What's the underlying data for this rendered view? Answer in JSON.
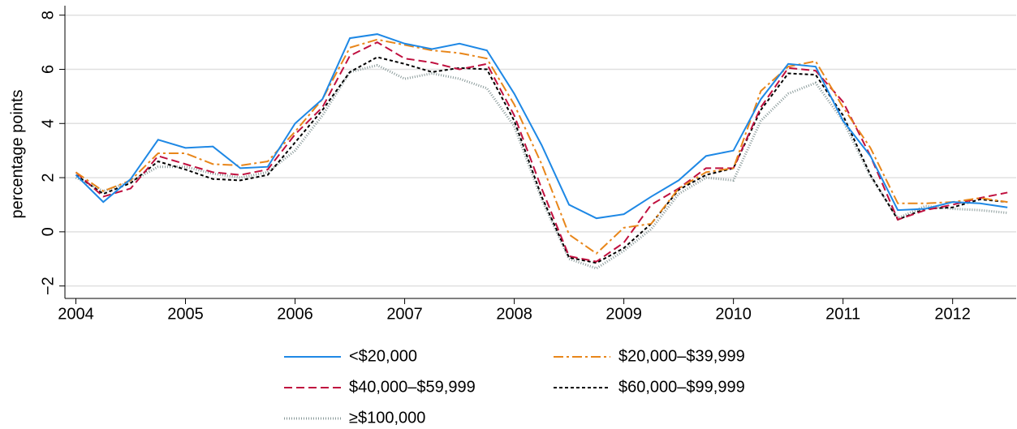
{
  "chart_data": {
    "type": "line",
    "y_label": "percentage points",
    "x": [
      2004,
      2004.25,
      2004.5,
      2004.75,
      2005,
      2005.25,
      2005.5,
      2005.75,
      2006,
      2006.25,
      2006.5,
      2006.75,
      2007,
      2007.25,
      2007.5,
      2007.75,
      2008,
      2008.25,
      2008.5,
      2008.75,
      2009,
      2009.25,
      2009.5,
      2009.75,
      2010,
      2010.25,
      2010.5,
      2010.75,
      2011,
      2011.25,
      2011.5,
      2011.75,
      2012,
      2012.25,
      2012.5
    ],
    "series": [
      {
        "name": "<$20,000",
        "color": "#1e88e5",
        "dash": "none",
        "values": [
          2.1,
          1.1,
          1.95,
          3.4,
          3.1,
          3.15,
          2.35,
          2.4,
          4.0,
          4.9,
          7.15,
          7.3,
          6.95,
          6.75,
          6.95,
          6.7,
          5.1,
          3.2,
          1.0,
          0.5,
          0.65,
          1.3,
          1.9,
          2.8,
          3.0,
          4.9,
          6.2,
          6.1,
          4.1,
          2.8,
          0.8,
          0.85,
          1.1,
          1.05,
          0.9
        ]
      },
      {
        "name": "$20,000–$39,999",
        "color": "#e8861a",
        "dash": "12,4,3,4",
        "values": [
          2.2,
          1.5,
          1.9,
          2.9,
          2.9,
          2.5,
          2.45,
          2.6,
          3.7,
          4.9,
          6.8,
          7.1,
          6.9,
          6.7,
          6.6,
          6.4,
          4.7,
          2.5,
          -0.1,
          -0.8,
          0.15,
          0.3,
          1.6,
          2.2,
          2.35,
          5.2,
          6.1,
          6.3,
          4.6,
          3.1,
          1.05,
          1.05,
          1.1,
          1.25,
          1.1
        ]
      },
      {
        "name": "$40,000–$59,999",
        "color": "#c0103f",
        "dash": "10,5",
        "values": [
          2.2,
          1.3,
          1.6,
          2.8,
          2.5,
          2.2,
          2.1,
          2.3,
          3.6,
          4.6,
          6.5,
          7.0,
          6.4,
          6.25,
          6.0,
          6.2,
          4.3,
          1.6,
          -0.9,
          -1.1,
          -0.4,
          1.0,
          1.6,
          2.35,
          2.35,
          4.6,
          6.05,
          5.95,
          4.8,
          2.8,
          0.45,
          0.8,
          1.0,
          1.25,
          1.45
        ]
      },
      {
        "name": "$60,000–$99,999",
        "color": "#000000",
        "dash": "4,3",
        "values": [
          2.1,
          1.4,
          1.8,
          2.6,
          2.3,
          1.95,
          1.9,
          2.1,
          3.3,
          4.5,
          5.9,
          6.45,
          6.2,
          5.9,
          6.05,
          6.0,
          4.1,
          1.3,
          -0.95,
          -1.15,
          -0.6,
          0.3,
          1.55,
          2.1,
          2.35,
          4.5,
          5.85,
          5.8,
          4.3,
          2.1,
          0.45,
          0.85,
          0.9,
          1.2,
          1.1
        ]
      },
      {
        "name": "≥$100,000",
        "color": "#8a9a9a",
        "dash": "1,2",
        "values": [
          2.0,
          1.5,
          1.85,
          2.4,
          2.4,
          2.15,
          2.0,
          2.2,
          3.0,
          4.3,
          5.9,
          6.15,
          5.65,
          5.85,
          5.65,
          5.3,
          3.9,
          1.2,
          -1.0,
          -1.35,
          -0.7,
          0.1,
          1.4,
          2.0,
          1.9,
          4.1,
          5.1,
          5.5,
          4.1,
          2.05,
          0.5,
          0.95,
          0.85,
          0.8,
          0.7
        ]
      }
    ],
    "xlim": [
      2003.9,
      2012.58
    ],
    "xticks": [
      2004,
      2005,
      2006,
      2007,
      2008,
      2009,
      2010,
      2011,
      2012
    ],
    "ylim": [
      -2.4,
      8.5
    ],
    "yticks": [
      {
        "value": -2,
        "label": "−2"
      },
      0,
      2,
      4,
      6,
      8
    ],
    "grid": true
  }
}
